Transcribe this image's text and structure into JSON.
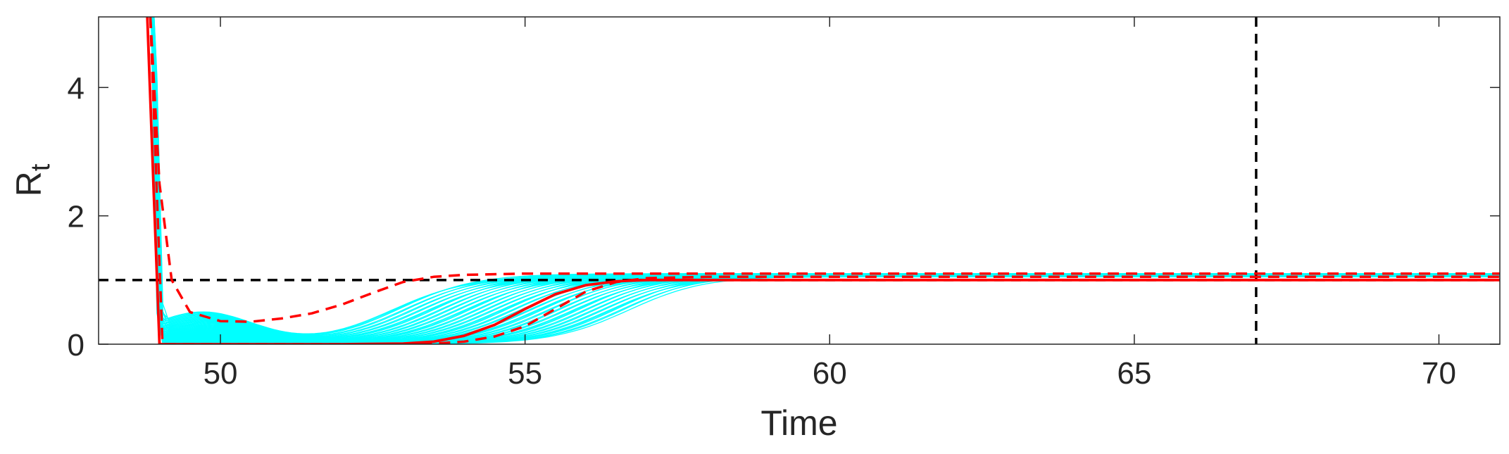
{
  "chart_data": {
    "type": "line",
    "title": "",
    "xlabel": "Time",
    "ylabel_main": "R",
    "ylabel_sub": "t",
    "xlim": [
      48,
      71
    ],
    "ylim": [
      0,
      5.1
    ],
    "xticks": [
      50,
      55,
      60,
      65,
      70
    ],
    "yticks": [
      0,
      2,
      4
    ],
    "grid": false,
    "legend": "none",
    "colors": {
      "ensemble": "#00ffff",
      "main": "#ff0000",
      "reference": "#000000",
      "axes": "#262626"
    },
    "reference_lines": [
      {
        "orientation": "horizontal",
        "value": 1,
        "style": "dashed",
        "color": "#000000"
      },
      {
        "orientation": "vertical",
        "value": 67,
        "style": "dashed",
        "color": "#000000"
      }
    ],
    "series": [
      {
        "style": "solid",
        "color": "#ff0000",
        "x": [
          48.8,
          48.9,
          49.0,
          50,
          51,
          52,
          53,
          53.5,
          54,
          54.5,
          55,
          55.5,
          56,
          56.5,
          57,
          58,
          60,
          65,
          71
        ],
        "y": [
          5.1,
          2.5,
          0.0,
          0.0,
          0.0,
          0.0,
          0.01,
          0.04,
          0.13,
          0.3,
          0.55,
          0.78,
          0.92,
          0.98,
          1.0,
          1.0,
          1.0,
          1.0,
          1.0
        ]
      },
      {
        "style": "dashed",
        "color": "#ff0000",
        "x": [
          48.85,
          48.95,
          49.05,
          50,
          51,
          52,
          53,
          53.5,
          54,
          54.5,
          55,
          55.5,
          56,
          56.5,
          57,
          58,
          60,
          65,
          71
        ],
        "y": [
          5.1,
          2.5,
          0.0,
          0.0,
          0.0,
          0.0,
          0.0,
          0.01,
          0.04,
          0.12,
          0.28,
          0.55,
          0.82,
          0.97,
          1.03,
          1.05,
          1.05,
          1.05,
          1.05
        ]
      },
      {
        "style": "dashed",
        "color": "#ff0000",
        "x": [
          48.85,
          49.0,
          49.2,
          49.5,
          50,
          50.5,
          51,
          51.5,
          52,
          52.5,
          53,
          53.5,
          54,
          55,
          56,
          58,
          60,
          65,
          71
        ],
        "y": [
          5.1,
          2.5,
          1.0,
          0.5,
          0.36,
          0.35,
          0.4,
          0.48,
          0.62,
          0.8,
          0.97,
          1.05,
          1.08,
          1.1,
          1.1,
          1.1,
          1.1,
          1.1,
          1.1
        ]
      }
    ]
  }
}
